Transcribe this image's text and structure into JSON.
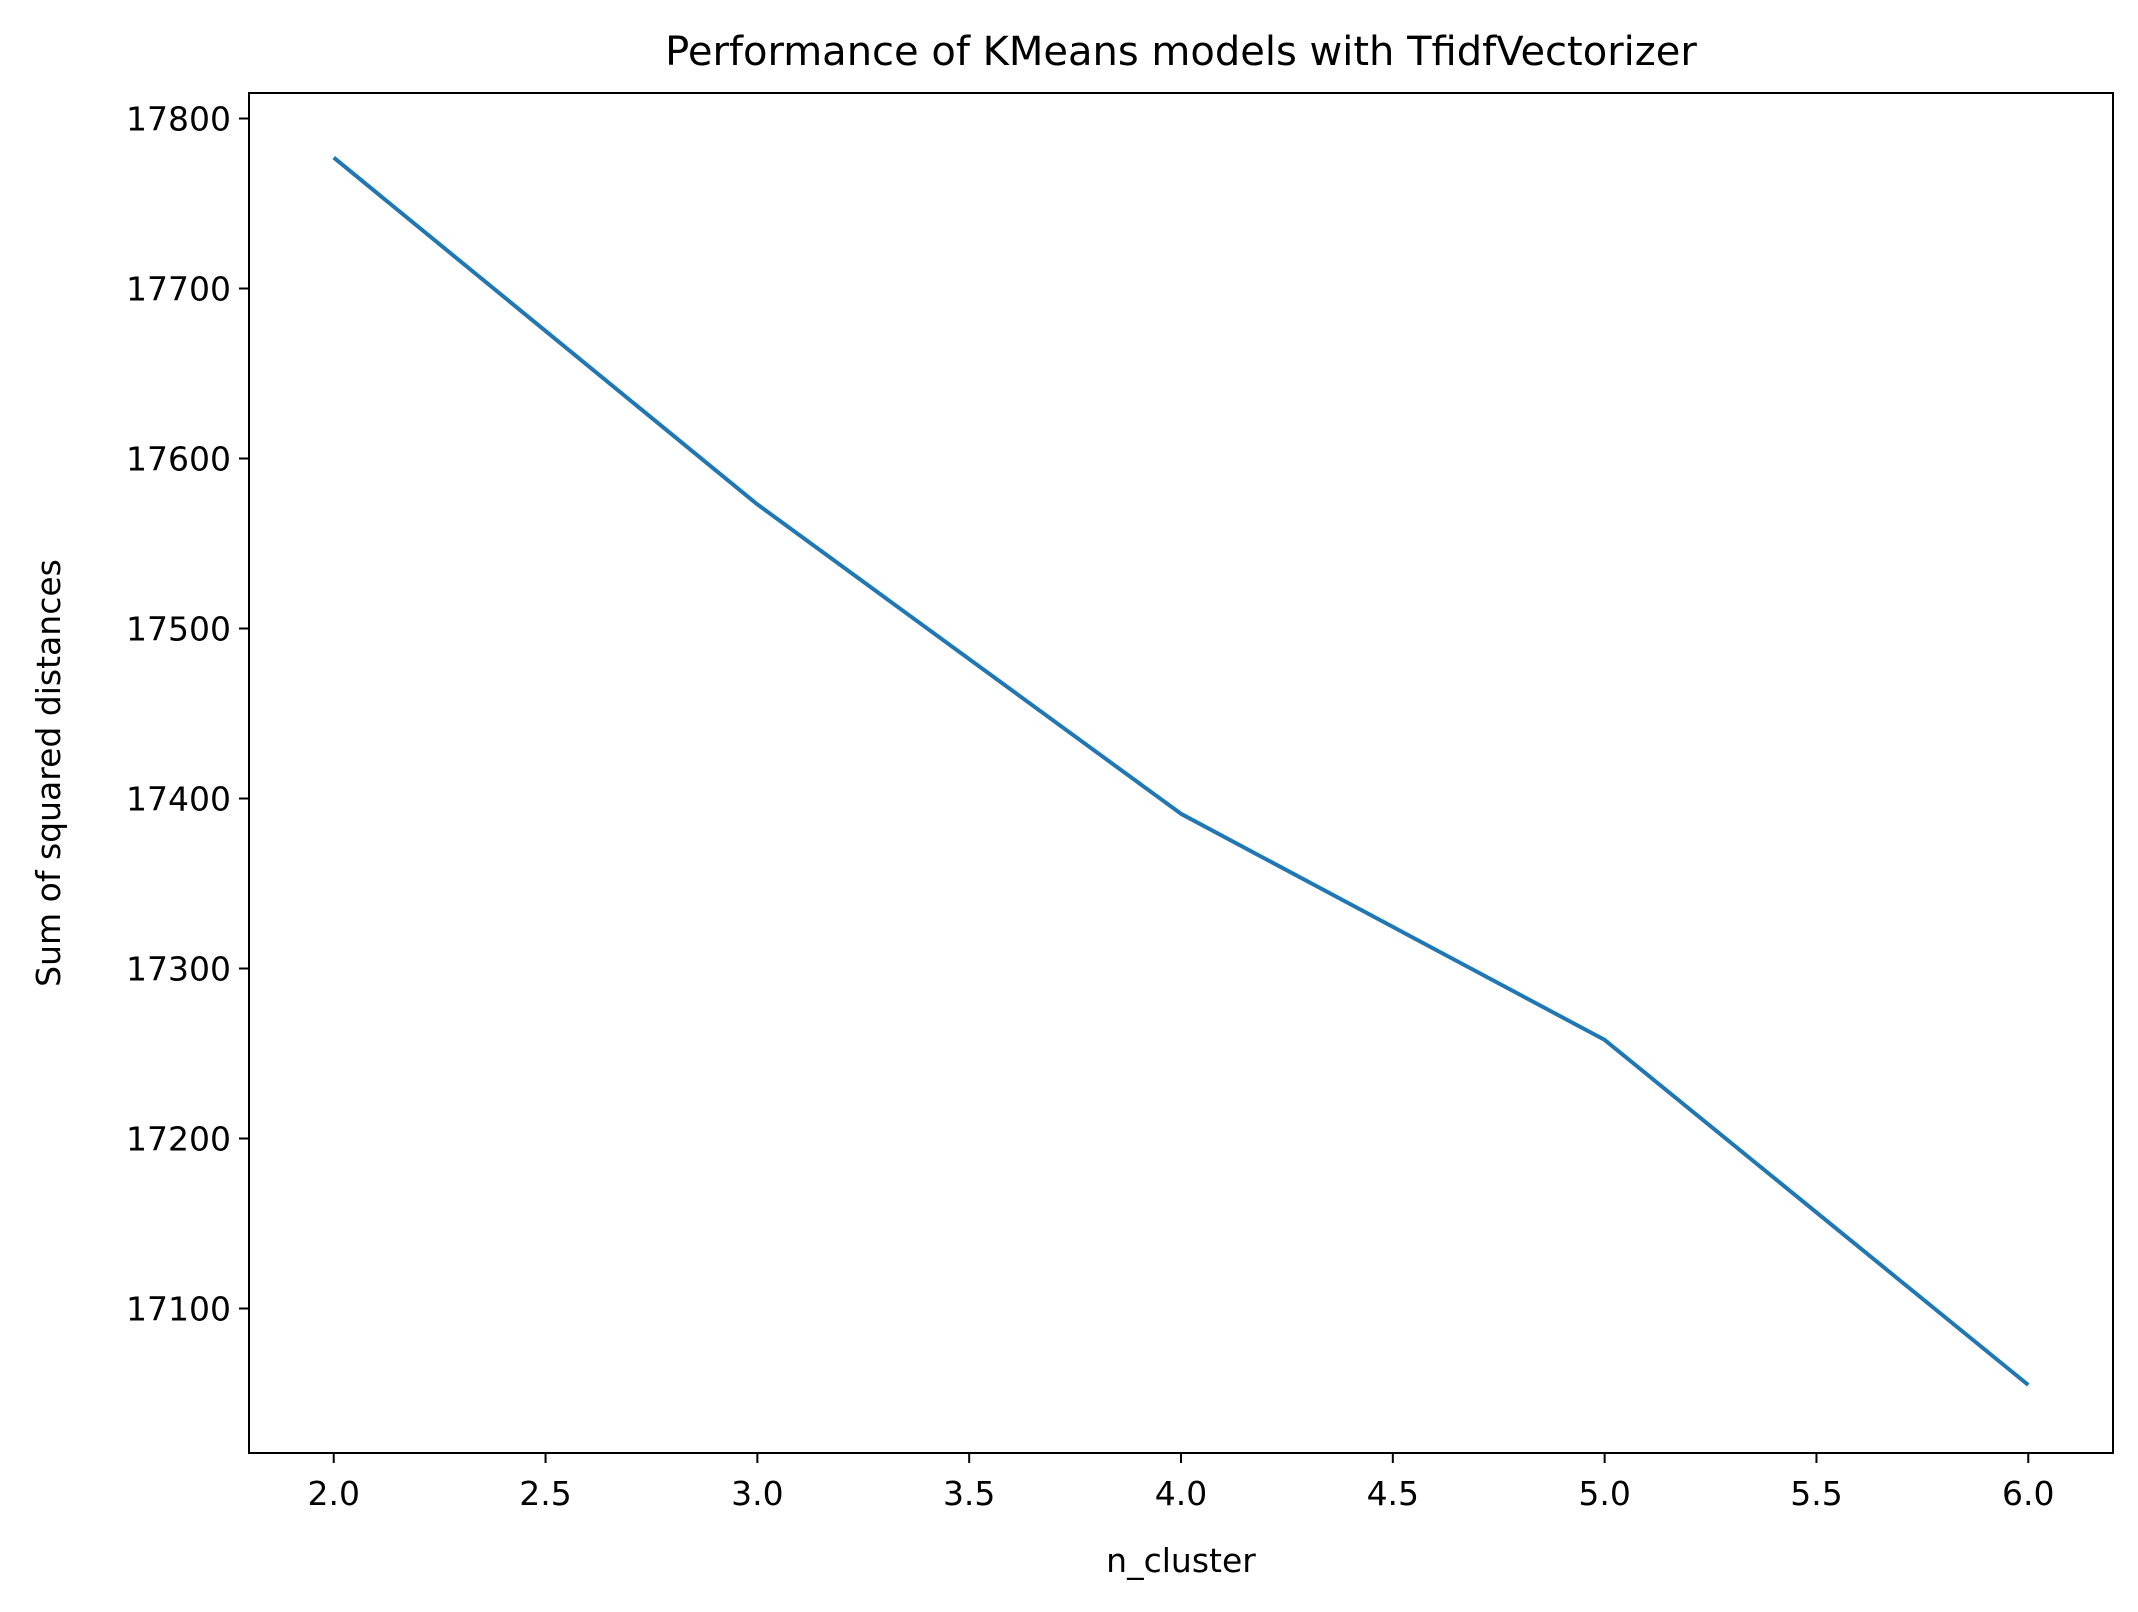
{
  "chart_data": {
    "type": "line",
    "title": "Performance of KMeans models with TfidfVectorizer",
    "xlabel": "n_cluster",
    "ylabel": "Sum of squared distances",
    "x": [
      2,
      3,
      4,
      5,
      6
    ],
    "series": [
      {
        "values": [
          17777,
          17573,
          17391,
          17258,
          17055
        ],
        "color": "#1f77b4"
      }
    ],
    "xlim": [
      1.8,
      6.2
    ],
    "ylim": [
      17015,
      17815
    ],
    "xticks": [
      2.0,
      2.5,
      3.0,
      3.5,
      4.0,
      4.5,
      5.0,
      5.5,
      6.0
    ],
    "xtick_labels": [
      "2.0",
      "2.5",
      "3.0",
      "3.5",
      "4.0",
      "4.5",
      "5.0",
      "5.5",
      "6.0"
    ],
    "yticks": [
      17100,
      17200,
      17300,
      17400,
      17500,
      17600,
      17700,
      17800
    ],
    "ytick_labels": [
      "17100",
      "17200",
      "17300",
      "17400",
      "17500",
      "17600",
      "17700",
      "17800"
    ],
    "grid": false,
    "legend": "none"
  }
}
